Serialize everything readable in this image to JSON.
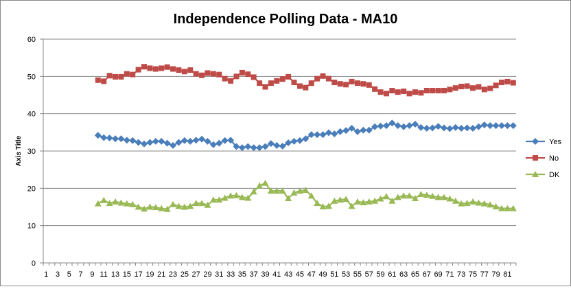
{
  "chart_data": {
    "type": "line",
    "title": "Independence Polling Data - MA10",
    "xlabel": "",
    "ylabel": "Axis Title",
    "ylim": [
      0,
      60
    ],
    "yticks": [
      0,
      10,
      20,
      30,
      40,
      50,
      60
    ],
    "xlim": [
      1,
      82
    ],
    "x_tick_labels": [
      "1",
      "3",
      "5",
      "7",
      "9",
      "11",
      "13",
      "15",
      "17",
      "19",
      "21",
      "23",
      "25",
      "27",
      "29",
      "31",
      "33",
      "35",
      "37",
      "39",
      "41",
      "43",
      "45",
      "47",
      "49",
      "51",
      "53",
      "55",
      "57",
      "59",
      "61",
      "63",
      "65",
      "67",
      "69",
      "71",
      "73",
      "75",
      "77",
      "79",
      "81"
    ],
    "grid": "horizontal",
    "legend_position": "right",
    "x": [
      10,
      11,
      12,
      13,
      14,
      15,
      16,
      17,
      18,
      19,
      20,
      21,
      22,
      23,
      24,
      25,
      26,
      27,
      28,
      29,
      30,
      31,
      32,
      33,
      34,
      35,
      36,
      37,
      38,
      39,
      40,
      41,
      42,
      43,
      44,
      45,
      46,
      47,
      48,
      49,
      50,
      51,
      52,
      53,
      54,
      55,
      56,
      57,
      58,
      59,
      60,
      61,
      62,
      63,
      64,
      65,
      66,
      67,
      68,
      69,
      70,
      71,
      72,
      73,
      74,
      75,
      76,
      77,
      78,
      79,
      80,
      81,
      82
    ],
    "series": [
      {
        "name": "Yes",
        "color": "#4a7ebb",
        "marker": "diamond",
        "values": [
          34.2,
          33.6,
          33.5,
          33.3,
          33.3,
          32.9,
          32.8,
          32.3,
          31.9,
          32.3,
          32.6,
          32.6,
          32.1,
          31.5,
          32.3,
          32.8,
          32.6,
          32.9,
          33.2,
          32.6,
          31.7,
          32.1,
          32.8,
          32.9,
          31.2,
          30.9,
          31.2,
          30.9,
          30.9,
          31.2,
          32.0,
          31.5,
          31.3,
          32.2,
          32.6,
          32.8,
          33.3,
          34.4,
          34.4,
          34.4,
          34.9,
          34.6,
          35.2,
          35.5,
          36.1,
          35.2,
          35.6,
          35.6,
          36.5,
          36.7,
          36.8,
          37.5,
          36.8,
          36.5,
          36.8,
          37.2,
          36.3,
          36.1,
          36.2,
          36.6,
          36.2,
          36.0,
          36.3,
          36.1,
          36.2,
          36.1,
          36.5,
          37.0,
          36.8,
          36.8,
          36.8,
          36.8,
          36.8
        ]
      },
      {
        "name": "No",
        "color": "#be4b48",
        "marker": "square",
        "values": [
          49.0,
          48.7,
          50.2,
          49.9,
          49.9,
          50.7,
          50.5,
          51.8,
          52.6,
          52.2,
          52.0,
          52.2,
          52.5,
          52.0,
          51.7,
          51.3,
          51.7,
          50.7,
          50.3,
          50.9,
          50.7,
          50.5,
          49.4,
          48.8,
          50.0,
          51.0,
          50.6,
          49.8,
          48.2,
          47.2,
          48.2,
          48.8,
          49.3,
          49.9,
          48.4,
          47.4,
          47.0,
          48.2,
          49.4,
          50.1,
          49.4,
          48.4,
          48.0,
          47.8,
          48.6,
          48.2,
          48.0,
          47.7,
          46.6,
          45.8,
          45.4,
          46.2,
          45.8,
          46.0,
          45.4,
          45.8,
          45.6,
          46.2,
          46.2,
          46.2,
          46.2,
          46.5,
          46.9,
          47.3,
          47.4,
          46.9,
          47.2,
          46.5,
          46.8,
          47.6,
          48.4,
          48.6,
          48.3
        ]
      },
      {
        "name": "DK",
        "color": "#98b954",
        "marker": "triangle",
        "values": [
          15.9,
          16.8,
          16.0,
          16.4,
          16.1,
          15.9,
          15.7,
          15.0,
          14.5,
          15.0,
          14.9,
          14.6,
          14.4,
          15.7,
          15.2,
          15.0,
          15.2,
          16.0,
          16.0,
          15.5,
          16.9,
          16.9,
          17.4,
          18.0,
          18.1,
          17.6,
          17.4,
          19.1,
          20.7,
          21.4,
          19.3,
          19.3,
          19.3,
          17.3,
          18.8,
          19.3,
          19.5,
          18.0,
          16.0,
          15.1,
          15.2,
          16.6,
          16.9,
          17.1,
          15.2,
          16.4,
          16.2,
          16.4,
          16.6,
          17.2,
          17.8,
          16.6,
          17.6,
          18.0,
          18.0,
          17.3,
          18.4,
          18.2,
          17.9,
          17.6,
          17.6,
          17.2,
          16.6,
          15.9,
          16.0,
          16.4,
          16.1,
          15.9,
          15.6,
          15.1,
          14.6,
          14.6,
          14.6
        ]
      }
    ]
  }
}
